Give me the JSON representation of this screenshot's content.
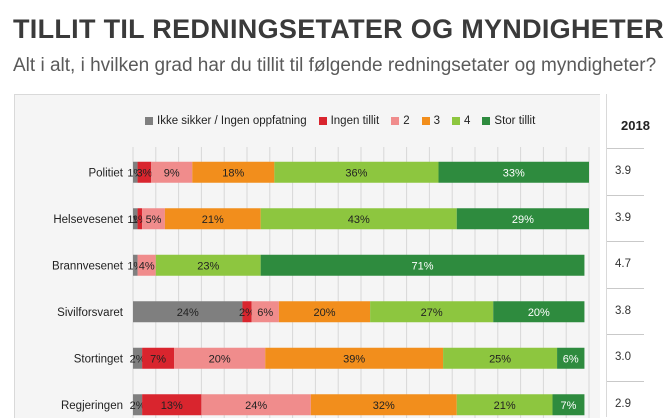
{
  "header": {
    "title": "TILLIT TIL REDNINGSETATER OG MYNDIGHETER",
    "subtitle": "Alt i alt, i hvilken grad har du tillit til følgende redningsetater og myndigheter?"
  },
  "colors": {
    "Ikke sikker / Ingen oppfatning": "#7f7f7f",
    "Ingen tillit": "#d9252e",
    "2": "#f08c8c",
    "3": "#f28e1c",
    "4": "#8dc63f",
    "Stor tillit": "#2e8b3e"
  },
  "chart_data": {
    "type": "bar",
    "orientation": "horizontal",
    "stacked": true,
    "title": "TILLIT TIL REDNINGSETATER OG MYNDIGHETER",
    "subtitle": "Alt i alt, i hvilken grad har du tillit til følgende redningsetater og myndigheter?",
    "xlim": [
      0,
      100
    ],
    "unit": "%",
    "legend_position": "top",
    "categories": [
      "Politiet",
      "Helsevesenet",
      "Brannvesenet",
      "Sivilforsvaret",
      "Stortinget",
      "Regjeringen"
    ],
    "series": [
      {
        "name": "Ikke sikker / Ingen oppfatning",
        "values": [
          1,
          1,
          1,
          24,
          2,
          2
        ],
        "labels": [
          "1%",
          "1%",
          "1%",
          "24%",
          "2%",
          "2%"
        ]
      },
      {
        "name": "Ingen tillit",
        "values": [
          3,
          1,
          0,
          2,
          7,
          13
        ],
        "labels": [
          "3%",
          "1%",
          "",
          "2%",
          "7%",
          "13%"
        ]
      },
      {
        "name": "2",
        "values": [
          9,
          5,
          4,
          6,
          20,
          24
        ],
        "labels": [
          "9%",
          "5%",
          "4%",
          "6%",
          "20%",
          "24%"
        ]
      },
      {
        "name": "3",
        "values": [
          18,
          21,
          0,
          20,
          39,
          32
        ],
        "labels": [
          "18%",
          "21%",
          "",
          "20%",
          "39%",
          "32%"
        ]
      },
      {
        "name": "4",
        "values": [
          36,
          43,
          23,
          27,
          25,
          21
        ],
        "labels": [
          "36%",
          "43%",
          "23%",
          "27%",
          "25%",
          "21%"
        ]
      },
      {
        "name": "Stor tillit",
        "values": [
          33,
          29,
          71,
          20,
          6,
          7
        ],
        "labels": [
          "33%",
          "29%",
          "71%",
          "20%",
          "6%",
          "7%"
        ]
      }
    ]
  },
  "side_table": {
    "header": "2018",
    "values": [
      "3.9",
      "3.9",
      "4.7",
      "3.8",
      "3.0",
      "2.9"
    ]
  }
}
